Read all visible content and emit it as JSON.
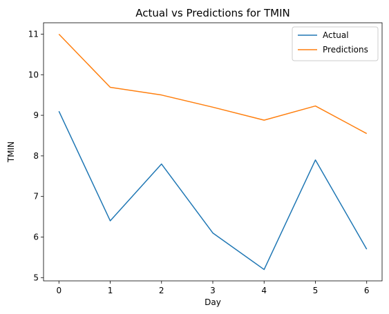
{
  "chart_data": {
    "type": "line",
    "title": "Actual vs Predictions for TMIN",
    "xlabel": "Day",
    "ylabel": "TMIN",
    "x": [
      0,
      1,
      2,
      3,
      4,
      5,
      6
    ],
    "xlim": [
      -0.3,
      6.3
    ],
    "ylim": [
      4.92,
      11.28
    ],
    "xticks": [
      "0",
      "1",
      "2",
      "3",
      "4",
      "5",
      "6"
    ],
    "yticks": [
      "5",
      "6",
      "7",
      "8",
      "9",
      "10",
      "11"
    ],
    "grid": false,
    "legend": "top-right",
    "series": [
      {
        "name": "Actual",
        "color": "#1f77b4",
        "values": [
          9.1,
          6.4,
          7.8,
          6.1,
          5.2,
          7.9,
          5.7
        ]
      },
      {
        "name": "Predictions",
        "color": "#ff7f0e",
        "values": [
          11.0,
          9.69,
          9.5,
          9.2,
          8.88,
          9.23,
          8.55
        ]
      }
    ]
  }
}
